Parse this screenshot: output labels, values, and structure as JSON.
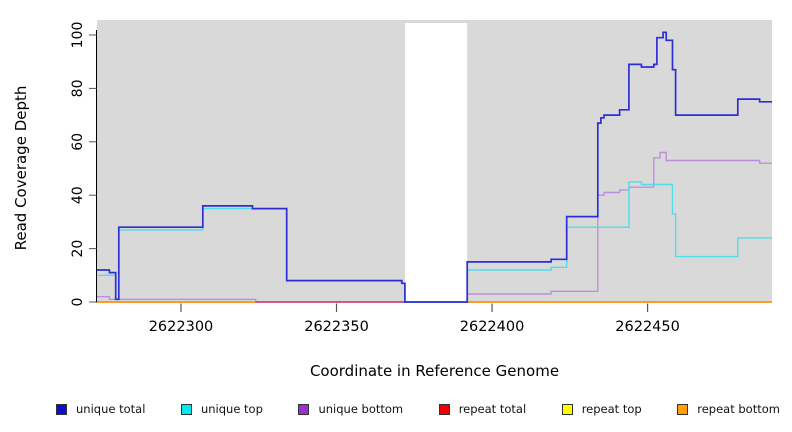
{
  "chart_data": {
    "type": "line",
    "subtype": "step",
    "title": "",
    "xlabel": "Coordinate in Reference Genome",
    "ylabel": "Read Coverage Depth",
    "xlim": [
      2622273,
      2622490
    ],
    "ylim": [
      0,
      105
    ],
    "x_ticks": [
      2622300,
      2622350,
      2622400,
      2622450
    ],
    "y_ticks": [
      0,
      20,
      40,
      60,
      80,
      100
    ],
    "grid": false,
    "legend_position": "bottom",
    "shade_color": "#D9D9D9",
    "background_shaded_regions": [
      [
        2622273,
        2622372
      ],
      [
        2622392,
        2622490
      ]
    ],
    "series": [
      {
        "name": "unique-total",
        "label": "unique total",
        "line_color": "#2E2ED6",
        "legend_color": "#0E0ECE",
        "segments": [
          [
            [
              2622273,
              12
            ],
            [
              2622277,
              11
            ],
            [
              2622279,
              1
            ],
            [
              2622280,
              28
            ],
            [
              2622307,
              36
            ],
            [
              2622323,
              35
            ],
            [
              2622334,
              8
            ],
            [
              2622371,
              7
            ],
            [
              2622372,
              0
            ],
            [
              2622392,
              15
            ],
            [
              2622419,
              16
            ],
            [
              2622424,
              32
            ],
            [
              2622434,
              67
            ],
            [
              2622435,
              69
            ],
            [
              2622436,
              70
            ],
            [
              2622441,
              72
            ],
            [
              2622444,
              89
            ],
            [
              2622448,
              88
            ],
            [
              2622452,
              89
            ],
            [
              2622453,
              99
            ],
            [
              2622455,
              101
            ],
            [
              2622456,
              98
            ],
            [
              2622458,
              87
            ],
            [
              2622459,
              70
            ],
            [
              2622479,
              76
            ],
            [
              2622486,
              75
            ],
            [
              2622490,
              75
            ]
          ]
        ]
      },
      {
        "name": "unique-top",
        "label": "unique top",
        "line_color": "#4FDDE8",
        "legend_color": "#00E8F0",
        "segments": [
          [
            [
              2622273,
              10
            ],
            [
              2622279,
              1
            ],
            [
              2622280,
              27
            ],
            [
              2622307,
              35
            ],
            [
              2622334,
              8
            ],
            [
              2622371,
              7
            ],
            [
              2622372,
              0
            ],
            [
              2622392,
              12
            ],
            [
              2622419,
              13
            ],
            [
              2622424,
              28
            ],
            [
              2622444,
              45
            ],
            [
              2622448,
              44
            ],
            [
              2622458,
              33
            ],
            [
              2622459,
              17
            ],
            [
              2622479,
              24
            ],
            [
              2622490,
              24
            ]
          ]
        ]
      },
      {
        "name": "unique-bottom",
        "label": "unique bottom",
        "line_color": "#BE8EDE",
        "legend_color": "#9B30D0",
        "segments": [
          [
            [
              2622273,
              2
            ],
            [
              2622277,
              1
            ],
            [
              2622324,
              0
            ],
            [
              2622392,
              3
            ],
            [
              2622419,
              4
            ],
            [
              2622434,
              40
            ],
            [
              2622436,
              41
            ],
            [
              2622441,
              42
            ],
            [
              2622444,
              43
            ],
            [
              2622452,
              54
            ],
            [
              2622454,
              56
            ],
            [
              2622456,
              53
            ],
            [
              2622486,
              52
            ],
            [
              2622490,
              52
            ]
          ]
        ]
      },
      {
        "name": "repeat-total",
        "label": "repeat total",
        "line_color": "#CC3A60",
        "legend_color": "#F00000",
        "segments": [
          [
            [
              2622273,
              0
            ],
            [
              2622372,
              0
            ]
          ],
          [
            [
              2622392,
              0
            ],
            [
              2622490,
              0
            ]
          ]
        ]
      },
      {
        "name": "repeat-top",
        "label": "repeat top",
        "line_color": "#EEE030",
        "legend_color": "#FFFF00",
        "segments": [
          [
            [
              2622273,
              0
            ],
            [
              2622324,
              0
            ]
          ],
          [
            [
              2622392,
              0
            ],
            [
              2622490,
              0
            ]
          ]
        ]
      },
      {
        "name": "repeat-bottom",
        "label": "repeat bottom",
        "line_color": "#FF9D1C",
        "legend_color": "#FFA000",
        "segments": [
          [
            [
              2622273,
              0
            ],
            [
              2622324,
              0
            ]
          ],
          [
            [
              2622392,
              0
            ],
            [
              2622490,
              0
            ]
          ]
        ]
      }
    ]
  }
}
